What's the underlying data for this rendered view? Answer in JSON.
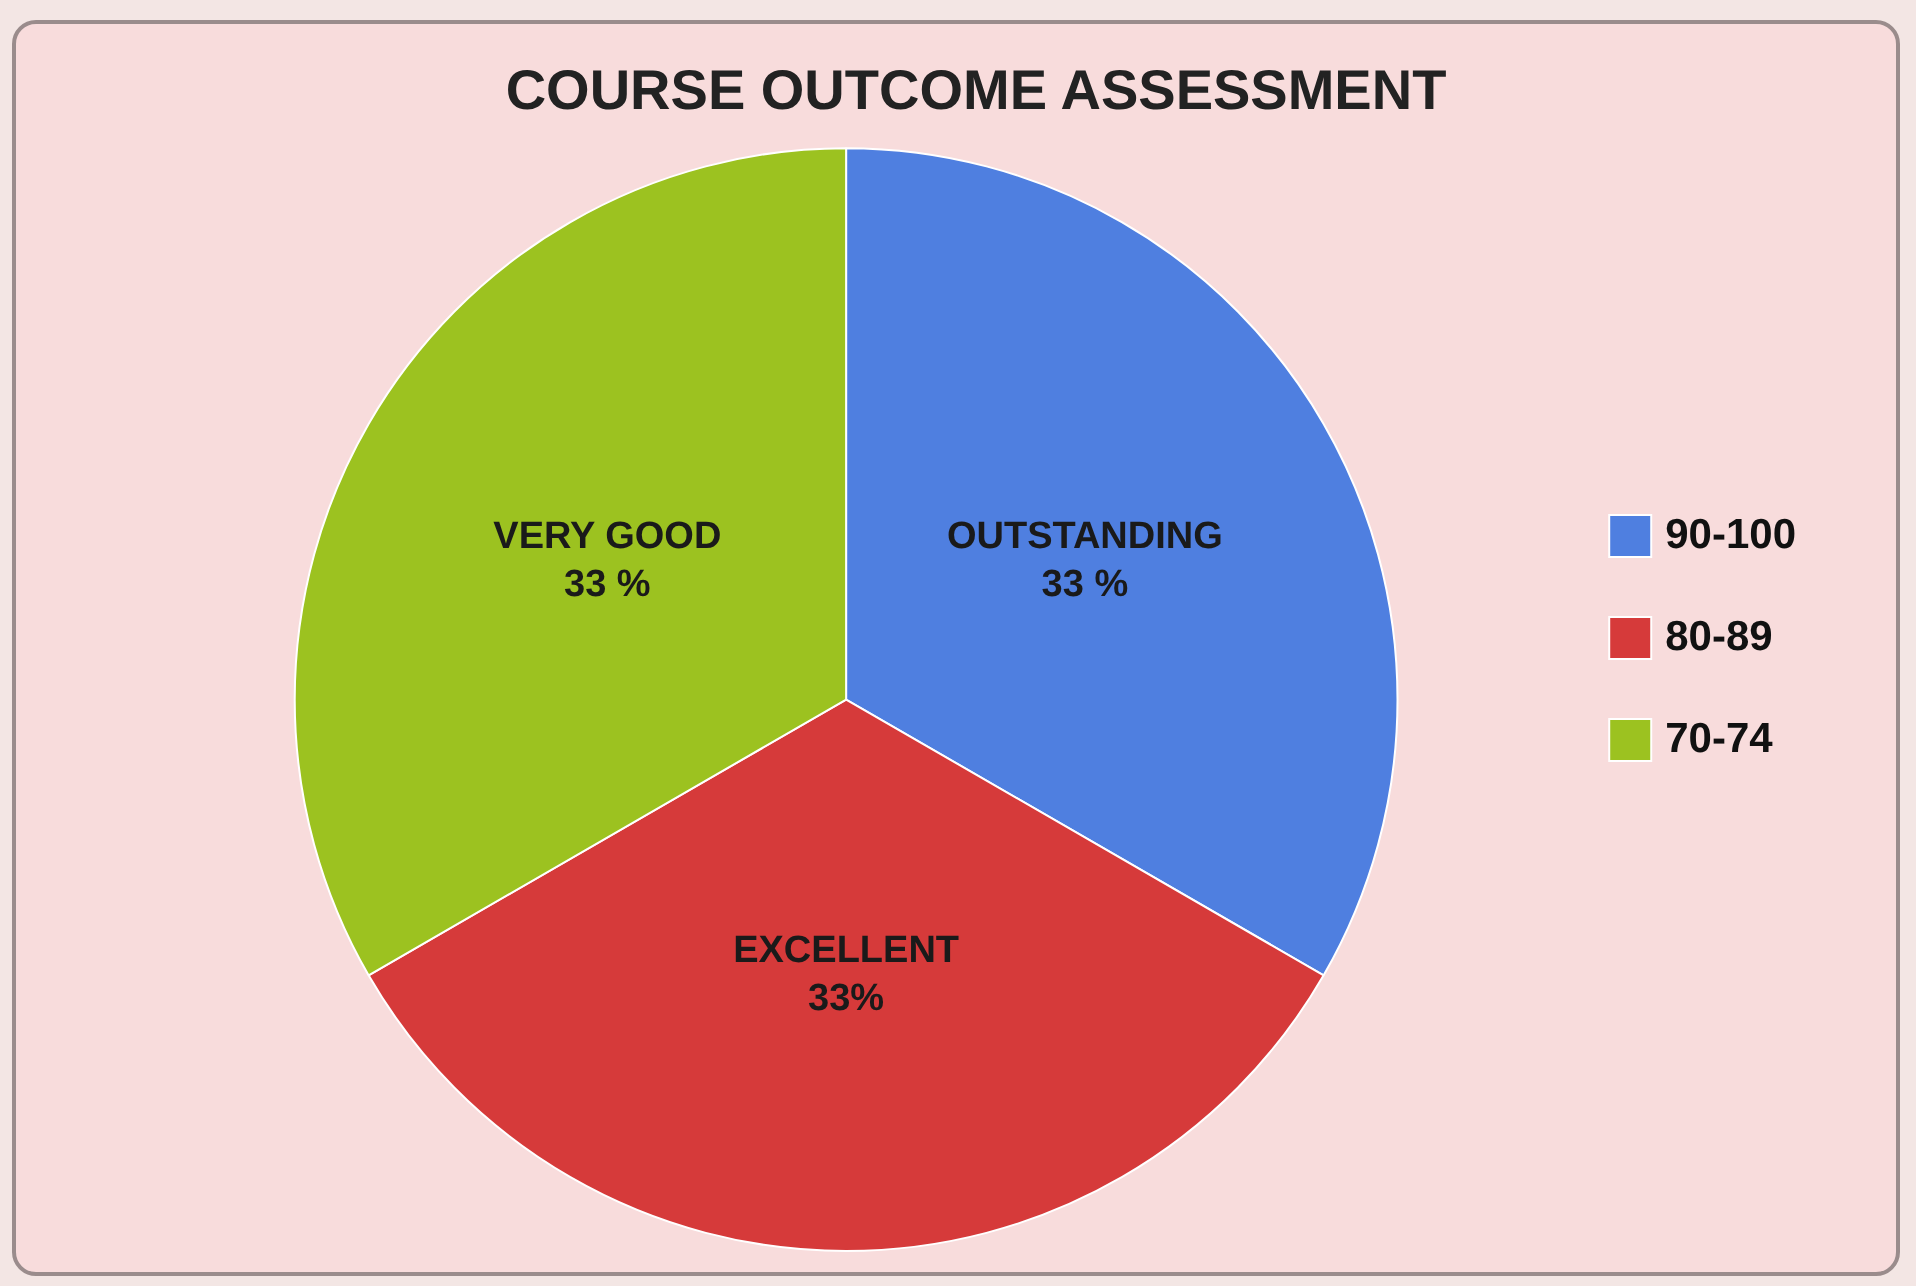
{
  "chart_data": {
    "type": "pie",
    "title": "COURSE OUTCOME ASSESSMENT",
    "categories": [
      "90-100",
      "80-89",
      "70-74"
    ],
    "values": [
      33,
      33,
      33
    ],
    "colors": [
      "#4f7fe0",
      "#d63a3a",
      "#9cc220"
    ],
    "value_labels": [
      "OUTSTANDING\n33 %",
      "EXCELLENT\n33%",
      "VERY GOOD\n33 %"
    ],
    "legend": "right"
  }
}
